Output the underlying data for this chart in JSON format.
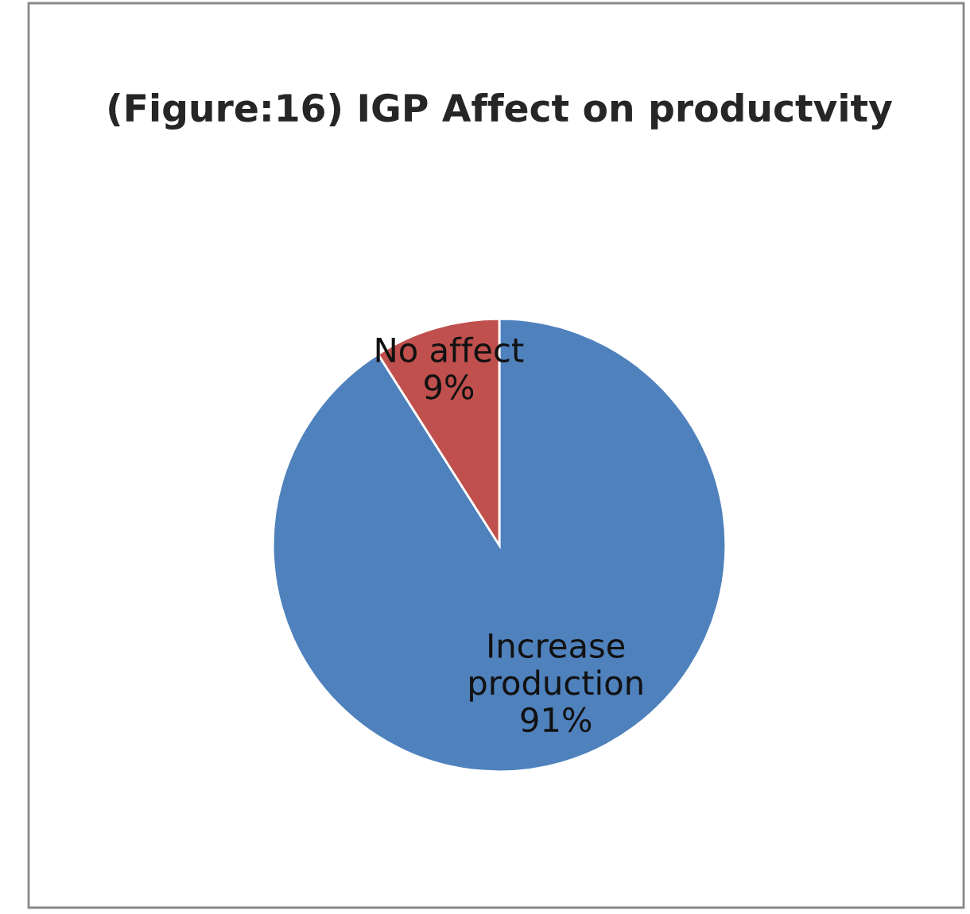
{
  "chart_data": {
    "type": "pie",
    "title": "(Figure:16) IGP Affect on productvity",
    "categories": [
      "Increase production",
      "No affect"
    ],
    "values": [
      91,
      9
    ],
    "colors": [
      "#4f81bd",
      "#c0504d"
    ],
    "value_labels": [
      "91%",
      "9%"
    ],
    "legend": false
  }
}
